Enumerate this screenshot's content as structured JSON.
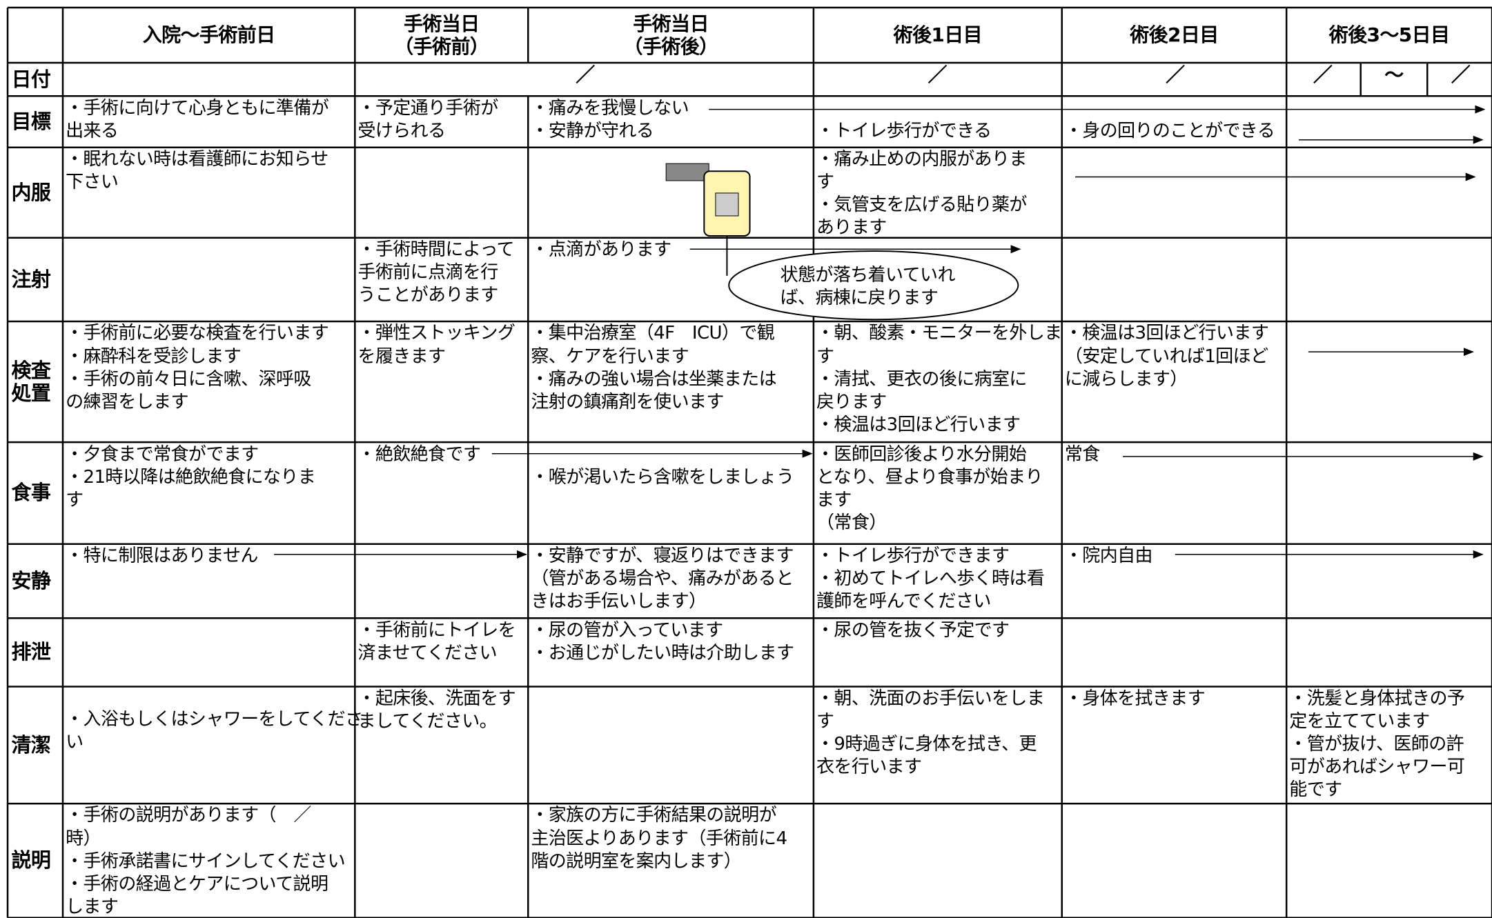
{
  "header": {
    "columns": [
      [
        "入院～手術前日"
      ],
      [
        "手術当日",
        "（手術前）"
      ],
      [
        "手術当日",
        "（手術後）"
      ],
      [
        "術後1日目"
      ],
      [
        "術後2日目"
      ],
      [
        "術後3～5日目"
      ]
    ]
  },
  "date_row": {
    "label": "日付",
    "marks": [
      "／",
      "／",
      "／",
      "／",
      "～",
      "／"
    ]
  },
  "rows": [
    {
      "label": [
        "目標"
      ],
      "cells": [
        [
          "・手術に向けて心身ともに準備が",
          "出来る"
        ],
        [
          "・予定通り手術が",
          "受けられる"
        ],
        [
          "・痛みを我慢しない",
          "・安静が守れる"
        ],
        [
          "・トイレ歩行ができる"
        ],
        [
          "・身の回りのことができる"
        ],
        null
      ]
    },
    {
      "label": [
        "内服"
      ],
      "cells": [
        [
          "・眠れない時は看護師にお知らせ",
          "下さい"
        ],
        null,
        null,
        [
          "・痛み止めの内服がありま",
          "す",
          "・気管支を広げる貼り薬が",
          "あります"
        ],
        null,
        null
      ]
    },
    {
      "label": [
        "注射"
      ],
      "cells": [
        null,
        [
          "・手術時間によって",
          "手術前に点滴を行",
          "うことがあります"
        ],
        [
          "・点滴があります"
        ],
        null,
        null,
        null
      ]
    },
    {
      "label": [
        "検査",
        "処置"
      ],
      "cells": [
        [
          "・手術前に必要な検査を行います",
          "・麻酔科を受診します",
          "・手術の前々日に含嗽、深呼吸",
          "の練習をします"
        ],
        [
          "・弾性ストッキング",
          "を履きます"
        ],
        [
          "・集中治療室（4F　ICU）で観",
          "察、ケアを行います",
          "・痛みの強い場合は坐薬または",
          "注射の鎮痛剤を使います"
        ],
        [
          "・朝、酸素・モニターを外しま",
          "す",
          "・清拭、更衣の後に病室に",
          "戻ります",
          "・検温は3回ほど行います"
        ],
        [
          "・検温は3回ほど行います",
          "（安定していれば1回ほど",
          "に減らします）"
        ],
        null
      ]
    },
    {
      "label": [
        "食事"
      ],
      "cells": [
        [
          "・夕食まで常食がでます",
          "・21時以降は絶飲絶食になりま",
          "す"
        ],
        [
          "・絶飲絶食です"
        ],
        [
          "・喉が渇いたら含嗽をしましょう"
        ],
        [
          "・医師回診後より水分開始",
          "となり、昼より食事が始まり",
          "ます",
          "（常食）"
        ],
        [
          "常食"
        ],
        null
      ]
    },
    {
      "label": [
        "安静"
      ],
      "cells": [
        [
          "・特に制限はありません"
        ],
        null,
        [
          "・安静ですが、寝返りはできます",
          "（管がある場合や、痛みがあると",
          "きはお手伝いします）"
        ],
        [
          "・トイレ歩行ができます",
          "・初めてトイレへ歩く時は看",
          "護師を呼んでください"
        ],
        [
          "・院内自由"
        ],
        null
      ]
    },
    {
      "label": [
        "排泄"
      ],
      "cells": [
        null,
        [
          "・手術前にトイレを",
          "済ませてください"
        ],
        [
          "・尿の管が入っています",
          "・お通じがしたい時は介助します"
        ],
        [
          "・尿の管を抜く予定です"
        ],
        null,
        null
      ]
    },
    {
      "label": [
        "清潔"
      ],
      "cells": [
        [
          "・入浴もしくはシャワーをしてくださ",
          "い"
        ],
        [
          "・起床後、洗面をす",
          "ましてください。"
        ],
        null,
        [
          "・朝、洗面のお手伝いをしま",
          "す",
          "・9時過ぎに身体を拭き、更",
          "衣を行います"
        ],
        [
          "・身体を拭きます"
        ],
        [
          "・洗髪と身体拭きの予",
          "定を立てています",
          "・管が抜け、医師の許",
          "可があればシャワー可",
          "能です"
        ]
      ]
    },
    {
      "label": [
        "説明"
      ],
      "cells": [
        [
          "・手術の説明があります（　／",
          "時）",
          "・手術承諾書にサインしてください",
          "・手術の経過とケアについて説明",
          "します"
        ],
        null,
        [
          "・家族の方に手術結果の説明が",
          "主治医よりあります（手術前に4",
          "階の説明室を案内します）"
        ],
        null,
        null,
        null
      ]
    }
  ],
  "note": [
    "状態が落ち着いていれ",
    "ば、病棟に戻ります"
  ]
}
